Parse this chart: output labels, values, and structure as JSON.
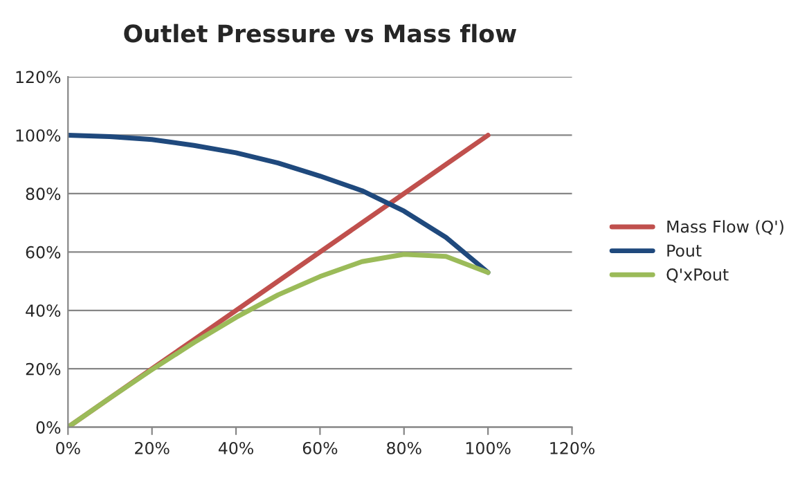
{
  "chart_data": {
    "type": "line",
    "title": "Outlet Pressure vs Mass flow",
    "x": [
      0,
      10,
      20,
      30,
      40,
      50,
      60,
      70,
      80,
      90,
      100
    ],
    "series": [
      {
        "name": "Mass Flow (Q')",
        "color": "#c0504d",
        "values": [
          0,
          10,
          20,
          30,
          40,
          50,
          60,
          70,
          80,
          90,
          100
        ]
      },
      {
        "name": "Pout",
        "color": "#1f497d",
        "values": [
          100,
          99.5,
          98.5,
          96.5,
          94,
          90.5,
          86,
          81,
          74,
          65,
          53
        ]
      },
      {
        "name": "Q'xPout",
        "color": "#9bbb59",
        "values": [
          0,
          10,
          19.7,
          29,
          37.6,
          45.3,
          51.6,
          56.7,
          59.2,
          58.5,
          53
        ]
      }
    ],
    "xlim": [
      0,
      120
    ],
    "ylim": [
      0,
      120
    ],
    "xticks": [
      {
        "value": 0,
        "label": "0%"
      },
      {
        "value": 20,
        "label": "20%"
      },
      {
        "value": 40,
        "label": "40%"
      },
      {
        "value": 60,
        "label": "60%"
      },
      {
        "value": 80,
        "label": "80%"
      },
      {
        "value": 100,
        "label": "100%"
      },
      {
        "value": 120,
        "label": "120%"
      }
    ],
    "yticks": [
      {
        "value": 0,
        "label": "0%"
      },
      {
        "value": 20,
        "label": "20%"
      },
      {
        "value": 40,
        "label": "40%"
      },
      {
        "value": 60,
        "label": "60%"
      },
      {
        "value": 80,
        "label": "80%"
      },
      {
        "value": 100,
        "label": "100%"
      },
      {
        "value": 120,
        "label": "120%"
      }
    ],
    "grid": "y",
    "legend": "right",
    "marker": "none",
    "line_style": "solid"
  }
}
